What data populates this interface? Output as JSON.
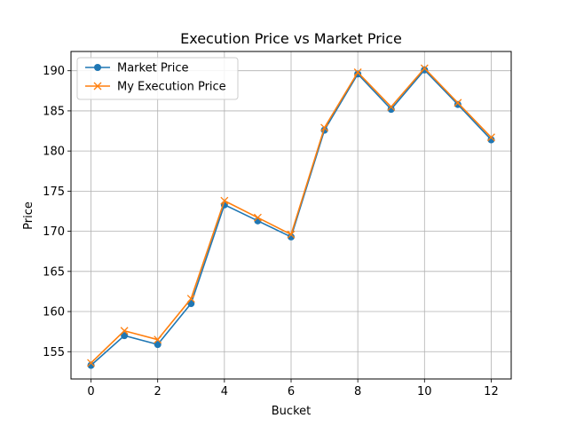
{
  "chart_data": {
    "type": "line",
    "title": "Execution Price vs Market Price",
    "xlabel": "Bucket",
    "ylabel": "Price",
    "xlim": [
      -0.6,
      12.6
    ],
    "ylim": [
      151.6,
      192.4
    ],
    "xticks": [
      0,
      2,
      4,
      6,
      8,
      10,
      12
    ],
    "yticks": [
      155,
      160,
      165,
      170,
      175,
      180,
      185,
      190
    ],
    "grid": true,
    "legend_position": "upper-left",
    "x": [
      0,
      1,
      2,
      3,
      4,
      5,
      6,
      7,
      8,
      9,
      10,
      11,
      12
    ],
    "series": [
      {
        "name": "Market Price",
        "color": "#1f77b4",
        "marker": "circle",
        "values": [
          153.3,
          157.0,
          155.9,
          161.0,
          173.3,
          171.3,
          169.3,
          182.6,
          189.6,
          185.2,
          190.1,
          185.8,
          181.4
        ]
      },
      {
        "name": "My Execution Price",
        "color": "#ff7f0e",
        "marker": "x",
        "values": [
          153.6,
          157.6,
          156.5,
          161.6,
          173.8,
          171.7,
          169.6,
          182.9,
          189.8,
          185.5,
          190.3,
          186.0,
          181.7
        ]
      }
    ]
  }
}
